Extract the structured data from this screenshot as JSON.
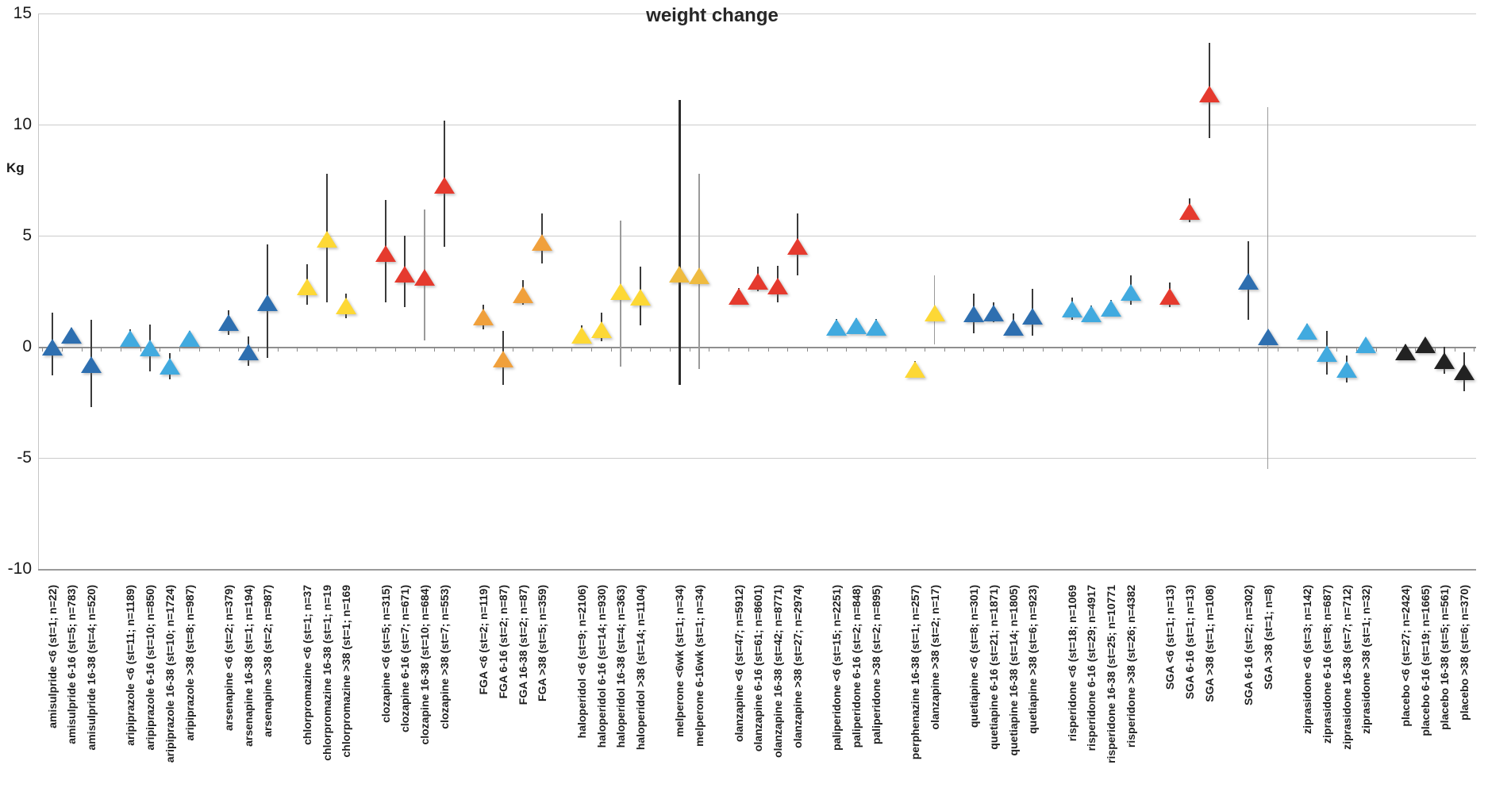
{
  "chart_data": {
    "type": "scatter",
    "title": "weight change",
    "ylabel": "Kg",
    "ylim": [
      -10,
      15
    ],
    "yticks": [
      15,
      10,
      5,
      0,
      -5,
      -10
    ],
    "grid": true,
    "legend": "none",
    "marker_shape": "triangle-up",
    "colors": {
      "darkblue": "#2E6FB0",
      "lightblue": "#41AADF",
      "yellow": "#FDD835",
      "orange": "#F0A03C",
      "amber": "#EFBB40",
      "red": "#E53A2E",
      "black": "#222222"
    },
    "points": [
      {
        "slot": 0,
        "label": "amisulpride <6 (st=1; n=22)",
        "value": 0.0,
        "ci": [
          -1.3,
          1.55
        ],
        "color": "darkblue",
        "bar": "dark"
      },
      {
        "slot": 1,
        "label": "amisulpride 6-16 (st=5; n=783)",
        "value": 0.55,
        "ci": [
          0.25,
          0.85
        ],
        "color": "darkblue",
        "bar": "dark"
      },
      {
        "slot": 2,
        "label": "amisulpride 16-38 (st=4; n=520)",
        "value": -0.8,
        "ci": [
          -2.7,
          1.2
        ],
        "color": "darkblue",
        "bar": "dark"
      },
      {
        "slot": 4,
        "label": "aripiprazole <6 (st=11; n=1189)",
        "value": 0.4,
        "ci": [
          0.0,
          0.8
        ],
        "color": "lightblue",
        "bar": "dark"
      },
      {
        "slot": 5,
        "label": "aripiprazole 6-16 (st=10; n=850)",
        "value": -0.05,
        "ci": [
          -1.1,
          1.0
        ],
        "color": "lightblue",
        "bar": "dark"
      },
      {
        "slot": 6,
        "label": "aripiprazole 16-38 (st=10; n=1724)",
        "value": -0.85,
        "ci": [
          -1.45,
          -0.3
        ],
        "color": "lightblue",
        "bar": "dark"
      },
      {
        "slot": 7,
        "label": "aripiprazole >38 (st=8; n=987)",
        "value": 0.4,
        "ci": [
          0.1,
          0.7
        ],
        "color": "lightblue",
        "bar": "dark"
      },
      {
        "slot": 9,
        "label": "arsenapine <6 (st=2; n=379)",
        "value": 1.1,
        "ci": [
          0.55,
          1.65
        ],
        "color": "darkblue",
        "bar": "dark"
      },
      {
        "slot": 10,
        "label": "arsenapine 16-38 (st=1; n=194)",
        "value": -0.2,
        "ci": [
          -0.85,
          0.45
        ],
        "color": "darkblue",
        "bar": "dark"
      },
      {
        "slot": 11,
        "label": "arsenapine >38 (st=2; n=987)",
        "value": 2.0,
        "ci": [
          -0.5,
          4.6
        ],
        "color": "darkblue",
        "bar": "dark"
      },
      {
        "slot": 13,
        "label": "chlorpromazine <6 (st=1; n=37",
        "value": 2.7,
        "ci": [
          1.9,
          3.7
        ],
        "color": "yellow",
        "bar": "dark"
      },
      {
        "slot": 14,
        "label": "chlorpromazine 16-38 (st=1; n=19",
        "value": 4.85,
        "ci": [
          2.0,
          7.8
        ],
        "color": "yellow",
        "bar": "dark"
      },
      {
        "slot": 15,
        "label": "chlorpromazine >38 (st=1; n=169",
        "value": 1.85,
        "ci": [
          1.3,
          2.4
        ],
        "color": "yellow",
        "bar": "dark"
      },
      {
        "slot": 17,
        "label": "clozapine <6 (st=5; n=315)",
        "value": 4.2,
        "ci": [
          2.0,
          6.6
        ],
        "color": "red",
        "bar": "dark"
      },
      {
        "slot": 18,
        "label": "clozapine 6-16 (st=7; n=671)",
        "value": 3.3,
        "ci": [
          1.8,
          5.0
        ],
        "color": "red",
        "bar": "dark"
      },
      {
        "slot": 19,
        "label": "clozapine 16-38 (st=10; n=684)",
        "value": 3.15,
        "ci": [
          0.3,
          6.2
        ],
        "color": "red",
        "bar": "gray"
      },
      {
        "slot": 20,
        "label": "clozapine >38 (st=7; n=553)",
        "value": 7.3,
        "ci": [
          4.5,
          10.2
        ],
        "color": "red",
        "bar": "dark"
      },
      {
        "slot": 22,
        "label": "FGA <6 (st=2; n=119)",
        "value": 1.35,
        "ci": [
          0.8,
          1.9
        ],
        "color": "orange",
        "bar": "dark"
      },
      {
        "slot": 23,
        "label": "FGA 6-16 (st=2; n=87)",
        "value": -0.55,
        "ci": [
          -1.7,
          0.7
        ],
        "color": "orange",
        "bar": "dark"
      },
      {
        "slot": 24,
        "label": "FGA 16-38 (st=2; n=87)",
        "value": 2.35,
        "ci": [
          1.9,
          3.0
        ],
        "color": "orange",
        "bar": "dark"
      },
      {
        "slot": 25,
        "label": "FGA >38 (st=5; n=359)",
        "value": 4.7,
        "ci": [
          3.75,
          6.0
        ],
        "color": "orange",
        "bar": "dark"
      },
      {
        "slot": 27,
        "label": "haloperidol <6 (st=9; n=2106)",
        "value": 0.55,
        "ci": [
          0.2,
          0.95
        ],
        "color": "yellow",
        "bar": "dark"
      },
      {
        "slot": 28,
        "label": "haloperidol 6-16 (st=14; n=930)",
        "value": 0.8,
        "ci": [
          0.25,
          1.55
        ],
        "color": "yellow",
        "bar": "dark"
      },
      {
        "slot": 29,
        "label": "haloperidol 16-38 (st=4; n=363)",
        "value": 2.5,
        "ci": [
          -0.9,
          5.7
        ],
        "color": "yellow",
        "bar": "gray"
      },
      {
        "slot": 30,
        "label": "haloperidol >38 (st=14; n=1104)",
        "value": 2.25,
        "ci": [
          0.95,
          3.6
        ],
        "color": "yellow",
        "bar": "dark"
      },
      {
        "slot": 32,
        "label": "melperone <6wk (st=1; n=34)",
        "value": 3.3,
        "ci": [
          -1.7,
          11.1
        ],
        "color": "amber",
        "bar": "thick"
      },
      {
        "slot": 33,
        "label": "melperone 6-16wk (st=1; n=34)",
        "value": 3.2,
        "ci": [
          -1.0,
          7.8
        ],
        "color": "amber",
        "bar": "gray"
      },
      {
        "slot": 35,
        "label": "olanzapine <6 (st=47; n=5912)",
        "value": 2.3,
        "ci": [
          1.95,
          2.65
        ],
        "color": "red",
        "bar": "dark"
      },
      {
        "slot": 36,
        "label": "olanzapine 6-16 (st=61; n=8601)",
        "value": 2.95,
        "ci": [
          2.5,
          3.6
        ],
        "color": "red",
        "bar": "dark"
      },
      {
        "slot": 37,
        "label": "olanzapine 16-38 (st=42; n=8771)",
        "value": 2.75,
        "ci": [
          2.0,
          3.65
        ],
        "color": "red",
        "bar": "dark"
      },
      {
        "slot": 38,
        "label": "olanzapine >38 (st=27; n=2974)",
        "value": 4.55,
        "ci": [
          3.2,
          6.0
        ],
        "color": "red",
        "bar": "dark"
      },
      {
        "slot": 40,
        "label": "paliperidone <6 (st=15; n=2251)",
        "value": 0.9,
        "ci": [
          0.55,
          1.25
        ],
        "color": "lightblue",
        "bar": "dark"
      },
      {
        "slot": 41,
        "label": "paliperidone 6-16 (st=2; n=848)",
        "value": 0.95,
        "ci": [
          0.6,
          1.3
        ],
        "color": "lightblue",
        "bar": "dark"
      },
      {
        "slot": 42,
        "label": "paliperidone >38 (st=2; n=895)",
        "value": 0.9,
        "ci": [
          0.55,
          1.25
        ],
        "color": "lightblue",
        "bar": "dark"
      },
      {
        "slot": 44,
        "label": "perphenazine 16-38 (st=1; n=257)",
        "value": -1.0,
        "ci": [
          -1.35,
          -0.65
        ],
        "color": "yellow",
        "bar": "dark"
      },
      {
        "slot": 45,
        "label": "olanzapine >38 (st=2; n=17)",
        "value": 1.55,
        "ci": [
          0.1,
          3.2
        ],
        "color": "yellow",
        "bar": "gray"
      },
      {
        "slot": 47,
        "label": "quetiapine <6 (st=8; n=301)",
        "value": 1.5,
        "ci": [
          0.6,
          2.4
        ],
        "color": "darkblue",
        "bar": "dark"
      },
      {
        "slot": 48,
        "label": "quetiapine 6-16 (st=21; n=1871)",
        "value": 1.55,
        "ci": [
          1.1,
          2.0
        ],
        "color": "darkblue",
        "bar": "dark"
      },
      {
        "slot": 49,
        "label": "quetiapine 16-38 (st=14; n=1805)",
        "value": 0.9,
        "ci": [
          0.5,
          1.5
        ],
        "color": "darkblue",
        "bar": "dark"
      },
      {
        "slot": 50,
        "label": "quetiapine >38 (st=6; n=923)",
        "value": 1.4,
        "ci": [
          0.5,
          2.6
        ],
        "color": "darkblue",
        "bar": "dark"
      },
      {
        "slot": 52,
        "label": "risperidone <6 (st=18; n=1069",
        "value": 1.7,
        "ci": [
          1.2,
          2.2
        ],
        "color": "lightblue",
        "bar": "dark"
      },
      {
        "slot": 53,
        "label": "risperidone 6-16 (st=29; n=4917",
        "value": 1.5,
        "ci": [
          1.15,
          1.85
        ],
        "color": "lightblue",
        "bar": "dark"
      },
      {
        "slot": 54,
        "label": "risperidone 16-38 (st=25; n=10771",
        "value": 1.75,
        "ci": [
          1.4,
          2.1
        ],
        "color": "lightblue",
        "bar": "dark"
      },
      {
        "slot": 55,
        "label": "risperidone >38 (st=26; n=4382",
        "value": 2.45,
        "ci": [
          1.9,
          3.2
        ],
        "color": "lightblue",
        "bar": "dark"
      },
      {
        "slot": 57,
        "label": "SGA <6 (st=1; n=13)",
        "value": 2.3,
        "ci": [
          1.8,
          2.9
        ],
        "color": "red",
        "bar": "dark"
      },
      {
        "slot": 58,
        "label": "SGA 6-16 (st=1; n=13)",
        "value": 6.1,
        "ci": [
          5.6,
          6.7
        ],
        "color": "red",
        "bar": "dark"
      },
      {
        "slot": 59,
        "label": "SGA >38 (st=1; n=108)",
        "value": 11.4,
        "ci": [
          9.4,
          13.7
        ],
        "color": "red",
        "bar": "dark"
      },
      {
        "slot": 61,
        "label": "SGA 6-16 (st=2; n=302)",
        "value": 2.95,
        "ci": [
          1.2,
          4.75
        ],
        "color": "darkblue",
        "bar": "dark"
      },
      {
        "slot": 62,
        "label": "SGA >38 (st=1; n=8)",
        "value": 0.45,
        "ci": [
          -5.5,
          10.8
        ],
        "color": "darkblue",
        "bar": "gray"
      },
      {
        "slot": 64,
        "label": "ziprasidone <6 (st=3; n=142)",
        "value": 0.7,
        "ci": [
          0.35,
          1.05
        ],
        "color": "lightblue",
        "bar": "dark"
      },
      {
        "slot": 65,
        "label": "ziprasidone 6-16 (st=8; n=687)",
        "value": -0.3,
        "ci": [
          -1.25,
          0.7
        ],
        "color": "lightblue",
        "bar": "dark"
      },
      {
        "slot": 66,
        "label": "ziprasidone 16-38 (st=7; n=712)",
        "value": -1.0,
        "ci": [
          -1.6,
          -0.4
        ],
        "color": "lightblue",
        "bar": "dark"
      },
      {
        "slot": 67,
        "label": "ziprasidone >38 (st=1; n=32)",
        "value": 0.1,
        "ci": [
          -0.2,
          0.4
        ],
        "color": "lightblue",
        "bar": "dark"
      },
      {
        "slot": 69,
        "label": "placebo <6 (st=27; n=2424)",
        "value": -0.2,
        "ci": [
          -0.5,
          0.1
        ],
        "color": "black",
        "bar": "dark"
      },
      {
        "slot": 70,
        "label": "placebo 6-16 (st=19; n=1665)",
        "value": 0.1,
        "ci": [
          -0.15,
          0.35
        ],
        "color": "black",
        "bar": "dark"
      },
      {
        "slot": 71,
        "label": "placebo 16-38 (st=5; n=561)",
        "value": -0.6,
        "ci": [
          -1.2,
          0.0
        ],
        "color": "black",
        "bar": "dark"
      },
      {
        "slot": 72,
        "label": "placebo >38 (st=6; n=370)",
        "value": -1.1,
        "ci": [
          -2.0,
          -0.25
        ],
        "color": "black",
        "bar": "dark"
      }
    ]
  }
}
